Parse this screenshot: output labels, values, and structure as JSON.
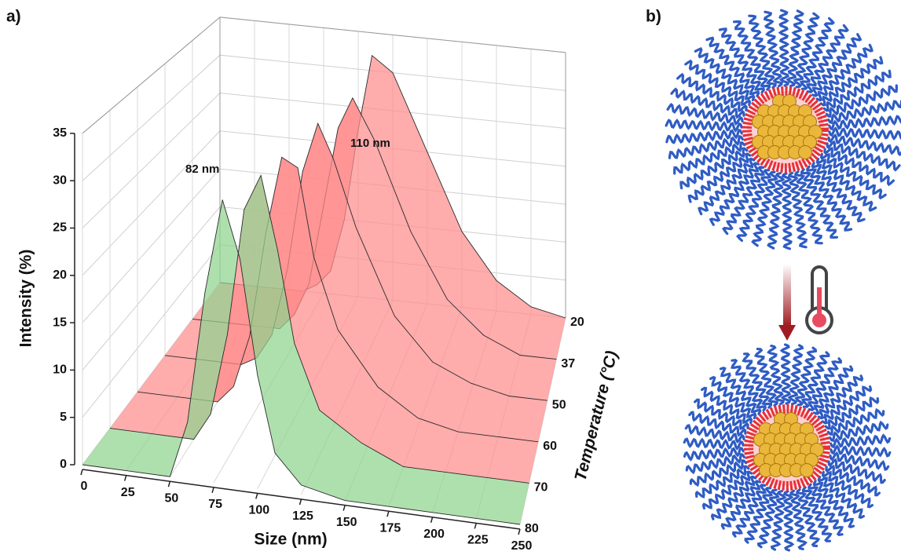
{
  "panel_labels": [
    "a)",
    "b)"
  ],
  "chart_data": {
    "type": "surface3d",
    "xlabel": "Size (nm)",
    "ylabel": "Intensity (%)",
    "depth_label": "Temperature (°C)",
    "annotations": [
      "82 nm",
      "110 nm"
    ],
    "x": [
      0,
      25,
      50,
      60,
      70,
      80,
      90,
      100,
      110,
      125,
      150,
      175,
      200,
      225,
      250
    ],
    "xlim": [
      0,
      250
    ],
    "xticks": [
      0,
      25,
      50,
      75,
      100,
      125,
      150,
      175,
      200,
      225,
      250
    ],
    "ylim": [
      0,
      35
    ],
    "yticks": [
      0,
      5,
      10,
      15,
      20,
      25,
      30,
      35
    ],
    "grid": true,
    "series": [
      {
        "name": "20",
        "color": "#ff8c8c",
        "values": [
          0,
          0,
          0,
          0,
          1,
          3,
          10,
          22,
          32,
          30,
          20,
          10,
          4,
          1,
          0
        ]
      },
      {
        "name": "37",
        "color": "#ff8c8c",
        "values": [
          0,
          0,
          0,
          0,
          2,
          6,
          16,
          26,
          30,
          25,
          14,
          6,
          2,
          0,
          0
        ]
      },
      {
        "name": "50",
        "color": "#ff8c8c",
        "values": [
          0,
          0,
          0,
          1,
          4,
          12,
          24,
          30,
          26,
          18,
          8,
          3,
          1,
          0,
          0
        ]
      },
      {
        "name": "60",
        "color": "#ff8c8c",
        "values": [
          0,
          0,
          0,
          2,
          8,
          20,
          29,
          28,
          18,
          10,
          4,
          1,
          0,
          0,
          0
        ]
      },
      {
        "name": "70",
        "color": "#ff8c8c",
        "values": [
          0,
          0,
          0,
          3,
          12,
          26,
          30,
          22,
          12,
          5,
          2,
          0,
          0,
          0,
          0
        ]
      },
      {
        "name": "80",
        "color": "#8fd48f",
        "values": [
          0,
          0,
          0,
          6,
          20,
          30,
          24,
          12,
          4,
          1,
          0,
          0,
          0,
          0,
          0
        ]
      }
    ]
  }
}
